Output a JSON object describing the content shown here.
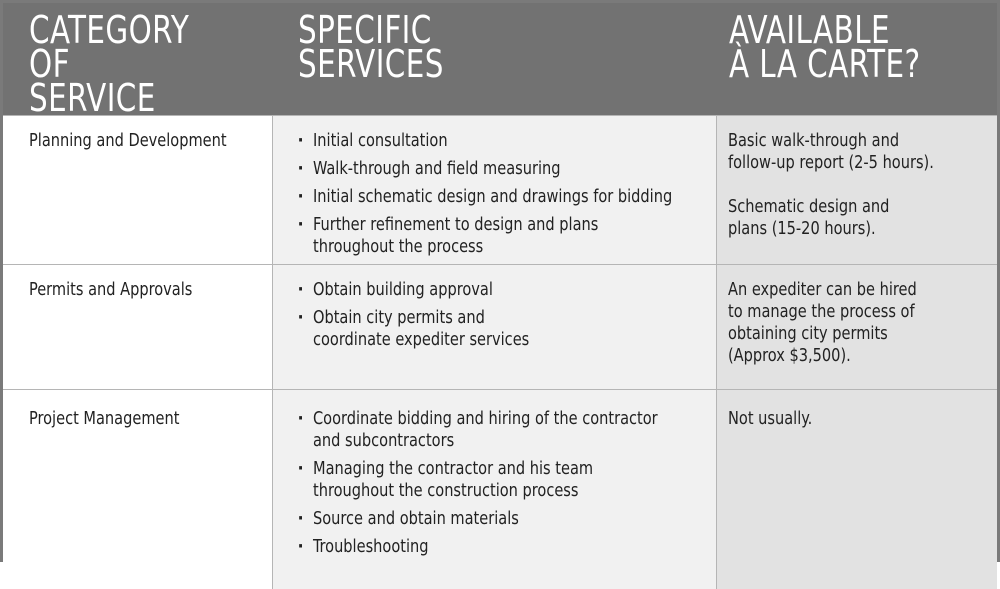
{
  "header": {
    "col1": "CATEGORY OF\nSERVICE",
    "col2": "SPECIFIC\nSERVICES",
    "col3": "AVAILABLE\nÀ LA CARTE?"
  },
  "rows": [
    {
      "category": "Planning and Development",
      "services": [
        "Initial consultation",
        "Walk-through and field measuring",
        "Initial schematic design and drawings for bidding",
        "Further refinement to design and plans\nthroughout the process"
      ],
      "a_la_carte": [
        "Basic walk-through and\nfollow-up report (2-5 hours).",
        "Schematic design and\nplans (15-20 hours)."
      ]
    },
    {
      "category": "Permits and Approvals",
      "services": [
        "Obtain building approval",
        "Obtain city permits and\ncoordinate expediter services"
      ],
      "a_la_carte": [
        "An expediter can be hired\nto manage the process of\nobtaining city permits\n(Approx $3,500)."
      ]
    },
    {
      "category": "Project Management",
      "services": [
        "Coordinate bidding and hiring of the contractor\nand subcontractors",
        "Managing the contractor and his team\nthroughout the construction process",
        "Source and obtain materials",
        "Troubleshooting"
      ],
      "a_la_carte": [
        "Not usually."
      ]
    }
  ]
}
